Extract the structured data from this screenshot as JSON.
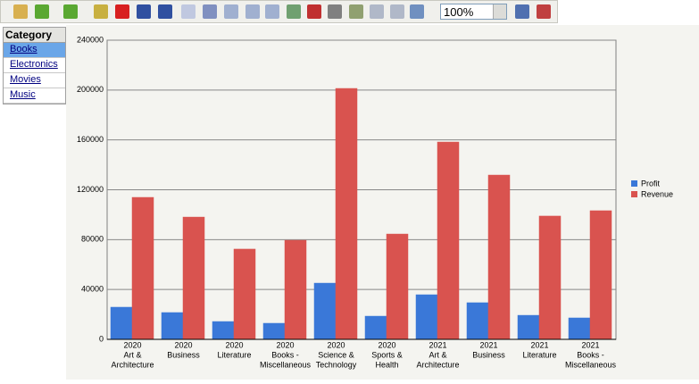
{
  "toolbar": {
    "zoom": "100%"
  },
  "category_panel": {
    "title": "Category",
    "items": [
      "Books",
      "Electronics",
      "Movies",
      "Music"
    ]
  },
  "chart_data": {
    "type": "bar",
    "categories": [
      [
        "2020",
        "Art &",
        "Architecture"
      ],
      [
        "2020",
        "Business"
      ],
      [
        "2020",
        "Literature"
      ],
      [
        "2020",
        "Books -",
        "Miscellaneous"
      ],
      [
        "2020",
        "Science &",
        "Technology"
      ],
      [
        "2020",
        "Sports &",
        "Health"
      ],
      [
        "2021",
        "Art &",
        "Architecture"
      ],
      [
        "2021",
        "Business"
      ],
      [
        "2021",
        "Literature"
      ],
      [
        "2021",
        "Books -",
        "Miscellaneous"
      ]
    ],
    "series": [
      {
        "name": "Profit",
        "color": "#3a78d8",
        "values": [
          25800,
          21500,
          14300,
          12900,
          45100,
          18600,
          35800,
          29400,
          19300,
          17200
        ]
      },
      {
        "name": "Revenue",
        "color": "#d9534f",
        "values": [
          113900,
          98100,
          72400,
          79500,
          201300,
          84500,
          158300,
          131800,
          98900,
          103200
        ]
      }
    ],
    "ylim": [
      0,
      240000
    ],
    "yticks": [
      0,
      40000,
      80000,
      120000,
      160000,
      200000,
      240000
    ],
    "grid": true,
    "legend": "right"
  }
}
